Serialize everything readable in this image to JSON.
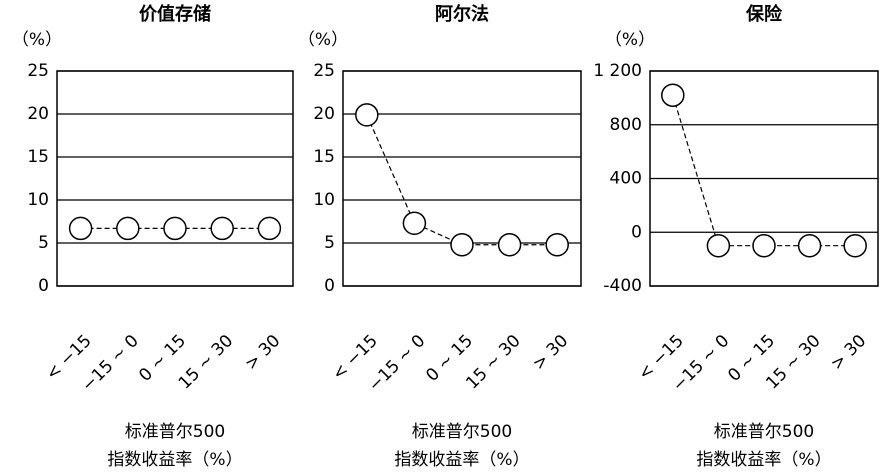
{
  "chart_data": [
    {
      "type": "line",
      "title": "价值存储",
      "ylabel": "（%）",
      "categories": [
        "< −15",
        "−15 ~ 0",
        "0 ~ 15",
        "15 ~ 30",
        "> 30"
      ],
      "values": [
        6.7,
        6.7,
        6.7,
        6.7,
        6.7
      ],
      "ylim": [
        0,
        25
      ],
      "yticks": [
        0,
        5,
        10,
        15,
        20,
        25
      ],
      "grid": true,
      "color": "#000000",
      "xlabel": [
        "标准普尔500",
        "指数收益率（%）"
      ]
    },
    {
      "type": "line",
      "title": "阿尔法",
      "ylabel": "（%）",
      "categories": [
        "< −15",
        "−15 ~ 0",
        "0 ~ 15",
        "15 ~ 30",
        "> 30"
      ],
      "values": [
        19.9,
        7.3,
        4.8,
        4.8,
        4.8
      ],
      "ylim": [
        0,
        25
      ],
      "yticks": [
        0,
        5,
        10,
        15,
        20,
        25
      ],
      "grid": true,
      "color": "#000000",
      "xlabel": [
        "标准普尔500",
        "指数收益率（%）"
      ]
    },
    {
      "type": "line",
      "title": "保险",
      "ylabel": "（%）",
      "categories": [
        "< −15",
        "−15 ~ 0",
        "0 ~ 15",
        "15 ~ 30",
        "> 30"
      ],
      "values": [
        1020,
        -100,
        -100,
        -100,
        -100
      ],
      "ylim": [
        -400,
        1200
      ],
      "yticks": [
        -400,
        0,
        400,
        800,
        {
          "value": 1200,
          "label": "1 200"
        }
      ],
      "grid": true,
      "color": "#000000",
      "xlabel": [
        "标准普尔500",
        "指数收益率（%）"
      ]
    }
  ]
}
